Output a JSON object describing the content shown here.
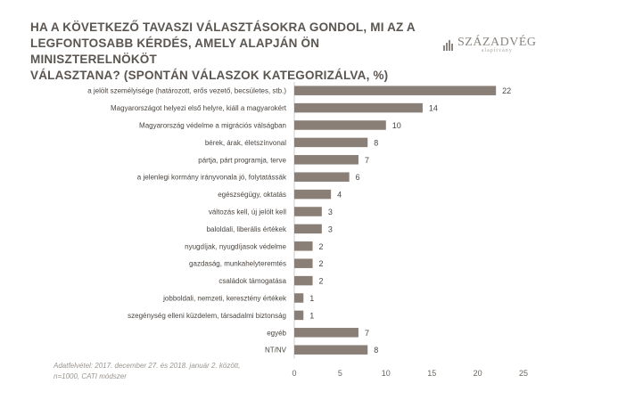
{
  "title_lines": [
    "HA A KÖVETKEZŐ TAVASZI VÁLASZTÁSOKRA GONDOL, MI AZ A",
    "LEGFONTOSABB KÉRDÉS, AMELY ALAPJÁN ÖN MINISZTERELNÖKÖT",
    "VÁLASZTANA? (SPONTÁN VÁLASZOK KATEGORIZÁLVA, %)"
  ],
  "logo": {
    "name": "SZÁZADVÉG",
    "sub": "alapítvány",
    "icon": "bar-chart-logo-icon"
  },
  "footnote_lines": [
    "Adatfelvétel: 2017. december 27. és 2018. január 2. között,",
    "n=1000, CATI módszer"
  ],
  "colors": {
    "bar": "#8a7f77",
    "title": "#5a5550",
    "axis": "#d0cdca",
    "label": "#4a4540"
  },
  "chart_data": {
    "type": "bar",
    "orientation": "horizontal",
    "categories": [
      "a jelölt személyisége (határozott, erős vezető, becsületes, stb.)",
      "Magyarországot helyezi első helyre, kiáll a magyarokért",
      "Magyarország védelme a migrációs válságban",
      "bérek, árak, életszínvonal",
      "pártja, párt programja, terve",
      "a jelenlegi kormány irányvonala jó, folytatássák",
      "egészségügy, oktatás",
      "változás kell, új jelölt kell",
      "baloldali, liberális értékek",
      "nyugdíjak, nyugdíjasok védelme",
      "gazdaság, munkahelyteremtés",
      "családok támogatása",
      "jobboldali, nemzeti, keresztény értékek",
      "szegénység elleni küzdelem, társadalmi biztonság",
      "egyéb",
      "NT/NV"
    ],
    "values": [
      22,
      14,
      10,
      8,
      7,
      6,
      4,
      3,
      3,
      2,
      2,
      2,
      1,
      1,
      7,
      8
    ],
    "xlim": [
      0,
      25
    ],
    "xticks": [
      0,
      5,
      10,
      15,
      20,
      25
    ],
    "grid": false,
    "legend": "none"
  }
}
